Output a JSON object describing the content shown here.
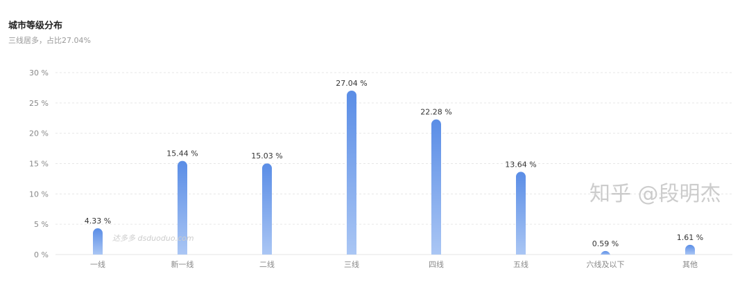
{
  "chart_data": {
    "type": "bar",
    "title": "城市等级分布",
    "subtitle": "三线居多，占比27.04%",
    "categories": [
      "一线",
      "新一线",
      "二线",
      "三线",
      "四线",
      "五线",
      "六线及以下",
      "其他"
    ],
    "values": [
      4.33,
      15.44,
      15.03,
      27.04,
      22.28,
      13.64,
      0.59,
      1.61
    ],
    "value_suffix": " %",
    "ylim": [
      0,
      30
    ],
    "yticks": [
      0,
      5,
      10,
      15,
      20,
      25,
      30
    ],
    "ytick_labels": [
      "0 %",
      "5 %",
      "10 %",
      "15 %",
      "20 %",
      "25 %",
      "30 %"
    ],
    "grid": true,
    "colors": {
      "bar_top": "#5a8de6",
      "bar_bottom": "#aac6f4",
      "grid": "#e6e6e6",
      "text": "#333333",
      "axis_text": "#888888"
    }
  },
  "watermarks": [
    "知乎 @段明杰",
    "达多多 dsduoduo.com"
  ]
}
